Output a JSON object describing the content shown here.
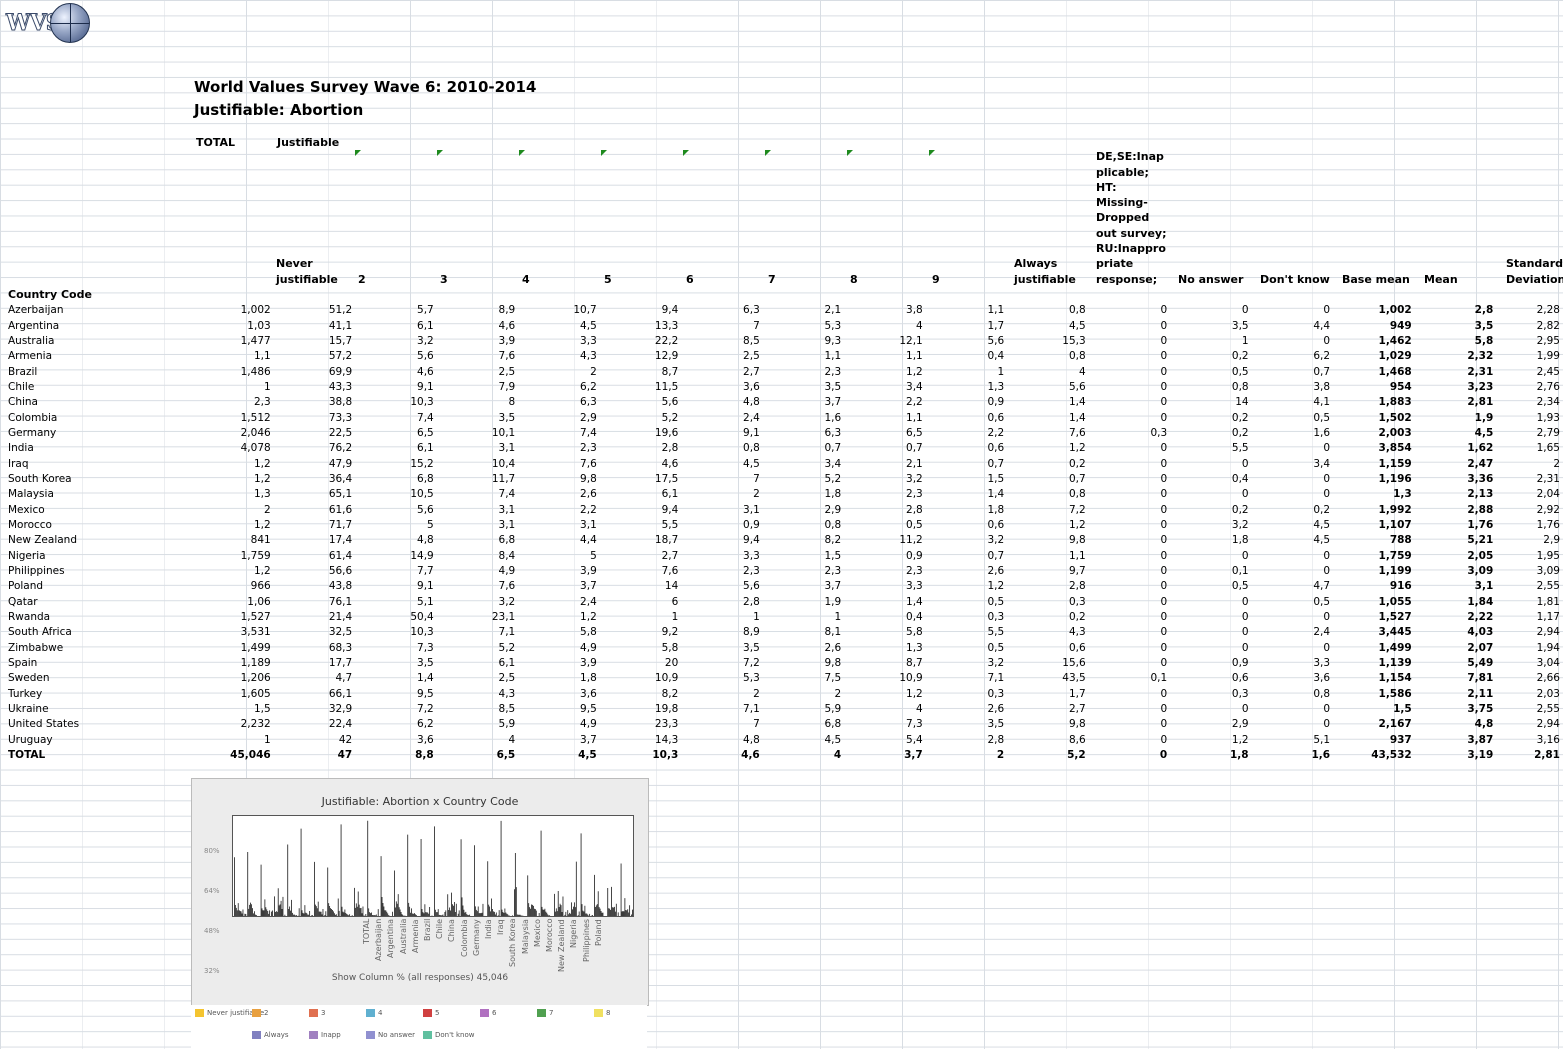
{
  "logo": {
    "text": "WVS"
  },
  "title": "World Values Survey Wave 6: 2010-2014",
  "subtitle": "Justifiable: Abortion",
  "header": {
    "total": "TOTAL",
    "justifiable": "Justifiable",
    "country_code": "Country Code"
  },
  "columns": [
    {
      "label": "Never\njustifiable"
    },
    {
      "label": "2"
    },
    {
      "label": "3"
    },
    {
      "label": "4"
    },
    {
      "label": "5"
    },
    {
      "label": "6"
    },
    {
      "label": "7"
    },
    {
      "label": "8"
    },
    {
      "label": "9"
    },
    {
      "label": "Always\njustifiable"
    },
    {
      "label": "DE,SE:Inap\nplicable;\nHT:\nMissing-\nDropped\nout survey;\nRU:Inappro\npriate\nresponse;"
    },
    {
      "label": "No answer"
    },
    {
      "label": "Don't know"
    },
    {
      "label": "Base mean"
    },
    {
      "label": "Mean"
    },
    {
      "label": "Standard\nDeviation"
    }
  ],
  "rows": [
    {
      "name": "Azerbaijan",
      "v": [
        "1,002",
        "51,2",
        "5,7",
        "8,9",
        "10,7",
        "9,4",
        "6,3",
        "2,1",
        "3,8",
        "1,1",
        "0,8",
        "0",
        "0",
        "0",
        "1,002",
        "2,8",
        "2,28"
      ]
    },
    {
      "name": "Argentina",
      "v": [
        "1,03",
        "41,1",
        "6,1",
        "4,6",
        "4,5",
        "13,3",
        "7",
        "5,3",
        "4",
        "1,7",
        "4,5",
        "0",
        "3,5",
        "4,4",
        "949",
        "3,5",
        "2,82"
      ]
    },
    {
      "name": "Australia",
      "v": [
        "1,477",
        "15,7",
        "3,2",
        "3,9",
        "3,3",
        "22,2",
        "8,5",
        "9,3",
        "12,1",
        "5,6",
        "15,3",
        "0",
        "1",
        "0",
        "1,462",
        "5,8",
        "2,95"
      ]
    },
    {
      "name": "Armenia",
      "v": [
        "1,1",
        "57,2",
        "5,6",
        "7,6",
        "4,3",
        "12,9",
        "2,5",
        "1,1",
        "1,1",
        "0,4",
        "0,8",
        "0",
        "0,2",
        "6,2",
        "1,029",
        "2,32",
        "1,99"
      ]
    },
    {
      "name": "Brazil",
      "v": [
        "1,486",
        "69,9",
        "4,6",
        "2,5",
        "2",
        "8,7",
        "2,7",
        "2,3",
        "1,2",
        "1",
        "4",
        "0",
        "0,5",
        "0,7",
        "1,468",
        "2,31",
        "2,45"
      ]
    },
    {
      "name": "Chile",
      "v": [
        "1",
        "43,3",
        "9,1",
        "7,9",
        "6,2",
        "11,5",
        "3,6",
        "3,5",
        "3,4",
        "1,3",
        "5,6",
        "0",
        "0,8",
        "3,8",
        "954",
        "3,23",
        "2,76"
      ]
    },
    {
      "name": "China",
      "v": [
        "2,3",
        "38,8",
        "10,3",
        "8",
        "6,3",
        "5,6",
        "4,8",
        "3,7",
        "2,2",
        "0,9",
        "1,4",
        "0",
        "14",
        "4,1",
        "1,883",
        "2,81",
        "2,34"
      ]
    },
    {
      "name": "Colombia",
      "v": [
        "1,512",
        "73,3",
        "7,4",
        "3,5",
        "2,9",
        "5,2",
        "2,4",
        "1,6",
        "1,1",
        "0,6",
        "1,4",
        "0",
        "0,2",
        "0,5",
        "1,502",
        "1,9",
        "1,93"
      ]
    },
    {
      "name": "Germany",
      "v": [
        "2,046",
        "22,5",
        "6,5",
        "10,1",
        "7,4",
        "19,6",
        "9,1",
        "6,3",
        "6,5",
        "2,2",
        "7,6",
        "0,3",
        "0,2",
        "1,6",
        "2,003",
        "4,5",
        "2,79"
      ]
    },
    {
      "name": "India",
      "v": [
        "4,078",
        "76,2",
        "6,1",
        "3,1",
        "2,3",
        "2,8",
        "0,8",
        "0,7",
        "0,7",
        "0,6",
        "1,2",
        "0",
        "5,5",
        "0",
        "3,854",
        "1,62",
        "1,65"
      ]
    },
    {
      "name": "Iraq",
      "v": [
        "1,2",
        "47,9",
        "15,2",
        "10,4",
        "7,6",
        "4,6",
        "4,5",
        "3,4",
        "2,1",
        "0,7",
        "0,2",
        "0",
        "0",
        "3,4",
        "1,159",
        "2,47",
        "2"
      ]
    },
    {
      "name": "South Korea",
      "v": [
        "1,2",
        "36,4",
        "6,8",
        "11,7",
        "9,8",
        "17,5",
        "7",
        "5,2",
        "3,2",
        "1,5",
        "0,7",
        "0",
        "0,4",
        "0",
        "1,196",
        "3,36",
        "2,31"
      ]
    },
    {
      "name": "Malaysia",
      "v": [
        "1,3",
        "65,1",
        "10,5",
        "7,4",
        "2,6",
        "6,1",
        "2",
        "1,8",
        "2,3",
        "1,4",
        "0,8",
        "0",
        "0",
        "0",
        "1,3",
        "2,13",
        "2,04"
      ]
    },
    {
      "name": "Mexico",
      "v": [
        "2",
        "61,6",
        "5,6",
        "3,1",
        "2,2",
        "9,4",
        "3,1",
        "2,9",
        "2,8",
        "1,8",
        "7,2",
        "0",
        "0,2",
        "0,2",
        "1,992",
        "2,88",
        "2,92"
      ]
    },
    {
      "name": "Morocco",
      "v": [
        "1,2",
        "71,7",
        "5",
        "3,1",
        "3,1",
        "5,5",
        "0,9",
        "0,8",
        "0,5",
        "0,6",
        "1,2",
        "0",
        "3,2",
        "4,5",
        "1,107",
        "1,76",
        "1,76"
      ]
    },
    {
      "name": "New Zealand",
      "v": [
        "841",
        "17,4",
        "4,8",
        "6,8",
        "4,4",
        "18,7",
        "9,4",
        "8,2",
        "11,2",
        "3,2",
        "9,8",
        "0",
        "1,8",
        "4,5",
        "788",
        "5,21",
        "2,9"
      ]
    },
    {
      "name": "Nigeria",
      "v": [
        "1,759",
        "61,4",
        "14,9",
        "8,4",
        "5",
        "2,7",
        "3,3",
        "1,5",
        "0,9",
        "0,7",
        "1,1",
        "0",
        "0",
        "0",
        "1,759",
        "2,05",
        "1,95"
      ]
    },
    {
      "name": "Philippines",
      "v": [
        "1,2",
        "56,6",
        "7,7",
        "4,9",
        "3,9",
        "7,6",
        "2,3",
        "2,3",
        "2,3",
        "2,6",
        "9,7",
        "0",
        "0,1",
        "0",
        "1,199",
        "3,09",
        "3,09"
      ]
    },
    {
      "name": "Poland",
      "v": [
        "966",
        "43,8",
        "9,1",
        "7,6",
        "3,7",
        "14",
        "5,6",
        "3,7",
        "3,3",
        "1,2",
        "2,8",
        "0",
        "0,5",
        "4,7",
        "916",
        "3,1",
        "2,55"
      ]
    },
    {
      "name": "Qatar",
      "v": [
        "1,06",
        "76,1",
        "5,1",
        "3,2",
        "2,4",
        "6",
        "2,8",
        "1,9",
        "1,4",
        "0,5",
        "0,3",
        "0",
        "0",
        "0,5",
        "1,055",
        "1,84",
        "1,81"
      ]
    },
    {
      "name": "Rwanda",
      "v": [
        "1,527",
        "21,4",
        "50,4",
        "23,1",
        "1,2",
        "1",
        "1",
        "1",
        "0,4",
        "0,3",
        "0,2",
        "0",
        "0",
        "0",
        "1,527",
        "2,22",
        "1,17"
      ]
    },
    {
      "name": "South Africa",
      "v": [
        "3,531",
        "32,5",
        "10,3",
        "7,1",
        "5,8",
        "9,2",
        "8,9",
        "8,1",
        "5,8",
        "5,5",
        "4,3",
        "0",
        "0",
        "2,4",
        "3,445",
        "4,03",
        "2,94"
      ]
    },
    {
      "name": "Zimbabwe",
      "v": [
        "1,499",
        "68,3",
        "7,3",
        "5,2",
        "4,9",
        "5,8",
        "3,5",
        "2,6",
        "1,3",
        "0,5",
        "0,6",
        "0",
        "0",
        "0",
        "1,499",
        "2,07",
        "1,94"
      ]
    },
    {
      "name": "Spain",
      "v": [
        "1,189",
        "17,7",
        "3,5",
        "6,1",
        "3,9",
        "20",
        "7,2",
        "9,8",
        "8,7",
        "3,2",
        "15,6",
        "0",
        "0,9",
        "3,3",
        "1,139",
        "5,49",
        "3,04"
      ]
    },
    {
      "name": "Sweden",
      "v": [
        "1,206",
        "4,7",
        "1,4",
        "2,5",
        "1,8",
        "10,9",
        "5,3",
        "7,5",
        "10,9",
        "7,1",
        "43,5",
        "0,1",
        "0,6",
        "3,6",
        "1,154",
        "7,81",
        "2,66"
      ]
    },
    {
      "name": "Turkey",
      "v": [
        "1,605",
        "66,1",
        "9,5",
        "4,3",
        "3,6",
        "8,2",
        "2",
        "2",
        "1,2",
        "0,3",
        "1,7",
        "0",
        "0,3",
        "0,8",
        "1,586",
        "2,11",
        "2,03"
      ]
    },
    {
      "name": "Ukraine",
      "v": [
        "1,5",
        "32,9",
        "7,2",
        "8,5",
        "9,5",
        "19,8",
        "7,1",
        "5,9",
        "4",
        "2,6",
        "2,7",
        "0",
        "0",
        "0",
        "1,5",
        "3,75",
        "2,55"
      ]
    },
    {
      "name": "United States",
      "v": [
        "2,232",
        "22,4",
        "6,2",
        "5,9",
        "4,9",
        "23,3",
        "7",
        "6,8",
        "7,3",
        "3,5",
        "9,8",
        "0",
        "2,9",
        "0",
        "2,167",
        "4,8",
        "2,94"
      ]
    },
    {
      "name": "Uruguay",
      "v": [
        "1",
        "42",
        "3,6",
        "4",
        "3,7",
        "14,3",
        "4,8",
        "4,5",
        "5,4",
        "2,8",
        "8,6",
        "0",
        "1,2",
        "5,1",
        "937",
        "3,87",
        "3,16"
      ]
    }
  ],
  "total_row": {
    "name": "TOTAL",
    "v": [
      "45,046",
      "47",
      "8,8",
      "6,5",
      "4,5",
      "10,3",
      "4,6",
      "4",
      "3,7",
      "2",
      "5,2",
      "0",
      "1,8",
      "1,6",
      "43,532",
      "3,19",
      "2,81"
    ]
  },
  "chart": {
    "title": "Justifiable: Abortion x Country Code",
    "footer": "Show Column % (all responses) 45,046",
    "y_ticks": [
      "80%",
      "64%",
      "48%",
      "32%"
    ],
    "x_labels": [
      "TOTAL",
      "Azerbaijan",
      "Argentina",
      "Australia",
      "Armenia",
      "Brazil",
      "Chile",
      "China",
      "Colombia",
      "Germany",
      "India",
      "Iraq",
      "South Korea",
      "Malaysia",
      "Mexico",
      "Morocco",
      "New Zealand",
      "Nigeria",
      "Philippines",
      "Poland"
    ],
    "legend": [
      "Never justifiable",
      "2",
      "3",
      "4",
      "5",
      "6",
      "7",
      "8",
      "Always",
      "Inapp",
      "No answer",
      "Don't know"
    ],
    "legend_colors": [
      "#f4c430",
      "#e8a040",
      "#e07050",
      "#60b0d0",
      "#d04040",
      "#b070c0",
      "#50a050",
      "#f0e060",
      "#8080c0",
      "#a080c0",
      "#9090d0",
      "#60c0a0"
    ]
  }
}
